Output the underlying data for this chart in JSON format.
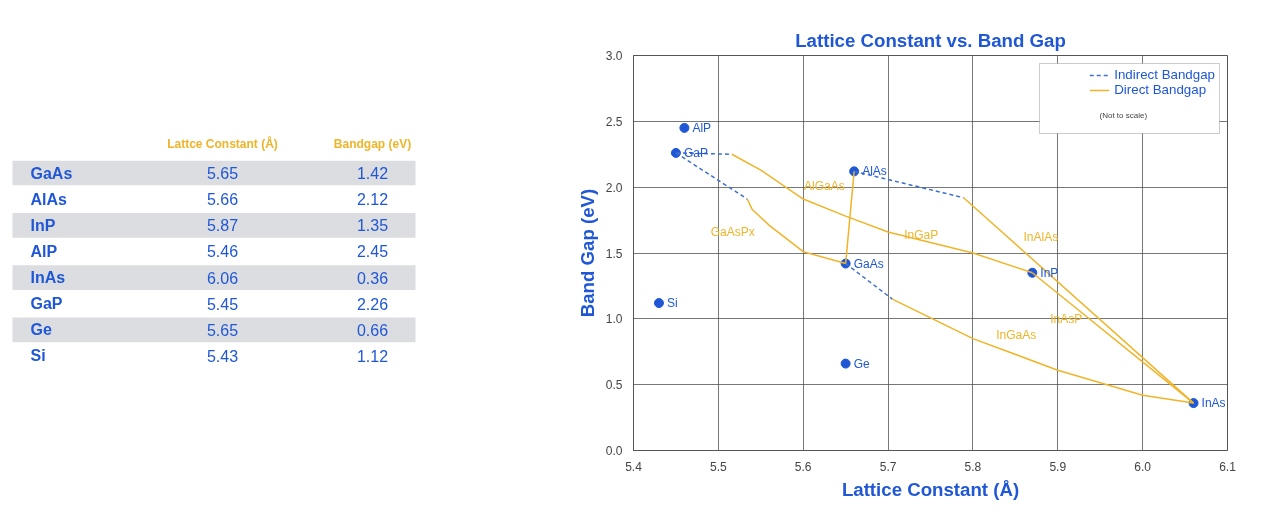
{
  "chart_data": [
    {
      "type": "other",
      "categories": [
        "GaAs",
        "AlAs",
        "InP",
        "AlP",
        "InAs",
        "GaP",
        "Ge",
        "Si"
      ],
      "data_labels": true,
      "series": [
        {
          "name": "Lattce Constant (Å)",
          "values": [
            5.65,
            5.66,
            5.87,
            5.46,
            6.06,
            5.45,
            5.65,
            5.43
          ]
        },
        {
          "name": "Bandgap (eV)",
          "values": [
            1.42,
            2.12,
            1.35,
            2.45,
            0.36,
            2.26,
            0.66,
            1.12
          ]
        }
      ]
    },
    {
      "type": "scatter",
      "title": "Lattice Constant vs. Band Gap",
      "xlabel": "Lattice Constant (Å)",
      "ylabel": "Band Gap (eV)",
      "xlim": [
        5.4,
        6.1
      ],
      "xticks": [
        5.4,
        5.5,
        5.6,
        5.7,
        5.8,
        5.9,
        {
          "value": 6.0,
          "label": "6.0"
        },
        6.1
      ],
      "ylim": [
        0,
        3.0
      ],
      "yticks": [
        {
          "value": 0,
          "label": "0.0"
        },
        0.5,
        {
          "value": 1,
          "label": "1.0"
        },
        1.5,
        {
          "value": 2,
          "label": "2.0"
        },
        2.5,
        {
          "value": 3,
          "label": "3.0"
        }
      ],
      "grid": true,
      "legend": "top right",
      "series": [
        {
          "type": "scatter",
          "marker": "circle",
          "color": "#1f57d6",
          "x": [
            5.65,
            5.66,
            5.87,
            5.46,
            6.06,
            5.45,
            5.65,
            5.43
          ],
          "values": [
            1.42,
            2.12,
            1.35,
            2.45,
            0.36,
            2.26,
            0.66,
            1.12
          ]
        },
        {
          "type": "line",
          "name": "Indirect Bandgap",
          "color": "#3d6fcf",
          "line_style": "dashed",
          "x": [
            5.45,
            5.516,
            null,
            5.45,
            5.534,
            null,
            5.66,
            5.789,
            null,
            5.65,
            5.705
          ],
          "values": [
            2.26,
            2.25,
            null,
            2.26,
            1.91,
            null,
            2.12,
            1.92,
            null,
            1.42,
            1.15
          ]
        },
        {
          "type": "line",
          "name": "Direct Bandgap",
          "color": "#f0b429",
          "line_style": "solid",
          "x": [
            5.516,
            5.55,
            5.6,
            5.65,
            5.7,
            5.75,
            5.8,
            5.87,
            null,
            5.534,
            5.54,
            5.56,
            5.6,
            5.65,
            null,
            5.66,
            5.65,
            null,
            5.789,
            6.06,
            null,
            5.87,
            6.06,
            null,
            5.705,
            5.8,
            5.9,
            6.0,
            6.06
          ],
          "values": [
            2.25,
            2.13,
            1.91,
            1.78,
            1.66,
            1.58,
            1.5,
            1.35,
            null,
            1.91,
            1.83,
            1.71,
            1.51,
            1.42,
            null,
            2.12,
            1.42,
            null,
            1.92,
            0.36,
            null,
            1.35,
            0.36,
            null,
            1.15,
            0.85,
            0.61,
            0.42,
            0.36
          ]
        }
      ],
      "annotations": [
        {
          "text": "GaAs",
          "x": 5.65,
          "y": 1.42
        },
        {
          "text": "AlAs",
          "x": 5.66,
          "y": 2.12
        },
        {
          "text": "InP",
          "x": 5.87,
          "y": 1.35
        },
        {
          "text": "AlP",
          "x": 5.46,
          "y": 2.45
        },
        {
          "text": "InAs",
          "x": 6.06,
          "y": 0.36
        },
        {
          "text": "GaP",
          "x": 5.45,
          "y": 2.26
        },
        {
          "text": "Ge",
          "x": 5.65,
          "y": 0.66
        },
        {
          "text": "Si",
          "x": 5.43,
          "y": 1.12
        },
        "AlGaAs",
        "GaAsPx",
        "InGaP",
        "InAlAs",
        "InAsP",
        "InGaAs",
        "(Not to scale)"
      ]
    }
  ]
}
